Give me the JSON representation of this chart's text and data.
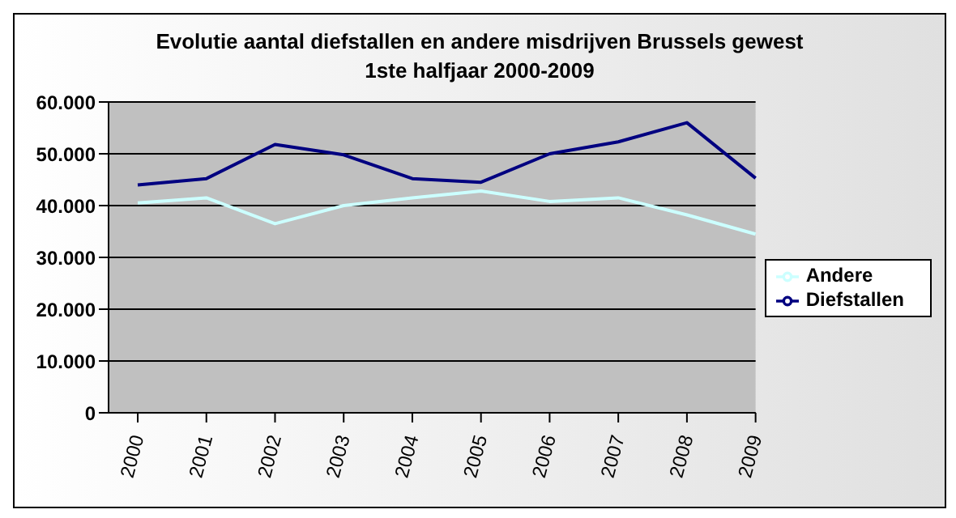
{
  "chart_data": {
    "type": "line",
    "title": "Evolutie aantal diefstallen en andere misdrijven Brussels gewest",
    "subtitle": "1ste halfjaar 2000-2009",
    "categories": [
      "2000",
      "2001",
      "2002",
      "2003",
      "2004",
      "2005",
      "2006",
      "2007",
      "2008",
      "2009"
    ],
    "series": [
      {
        "name": "Diefstallen",
        "color": "#000080",
        "values": [
          44000,
          45200,
          51800,
          49800,
          45200,
          44500,
          50000,
          52300,
          56000,
          45300
        ]
      },
      {
        "name": "Andere",
        "color": "#ccffff",
        "values": [
          40500,
          41500,
          36500,
          40000,
          41500,
          42800,
          40800,
          41500,
          38200,
          34500
        ]
      }
    ],
    "ylim": [
      0,
      60000
    ],
    "yticks": [
      {
        "value": 0,
        "label": "0"
      },
      {
        "value": 10000,
        "label": "10.000"
      },
      {
        "value": 20000,
        "label": "20.000"
      },
      {
        "value": 30000,
        "label": "30.000"
      },
      {
        "value": 40000,
        "label": "40.000"
      },
      {
        "value": 50000,
        "label": "50.000"
      },
      {
        "value": 60000,
        "label": "60.000"
      }
    ],
    "grid": "y",
    "legend": "right",
    "marker": "none",
    "line_style": "solid"
  }
}
